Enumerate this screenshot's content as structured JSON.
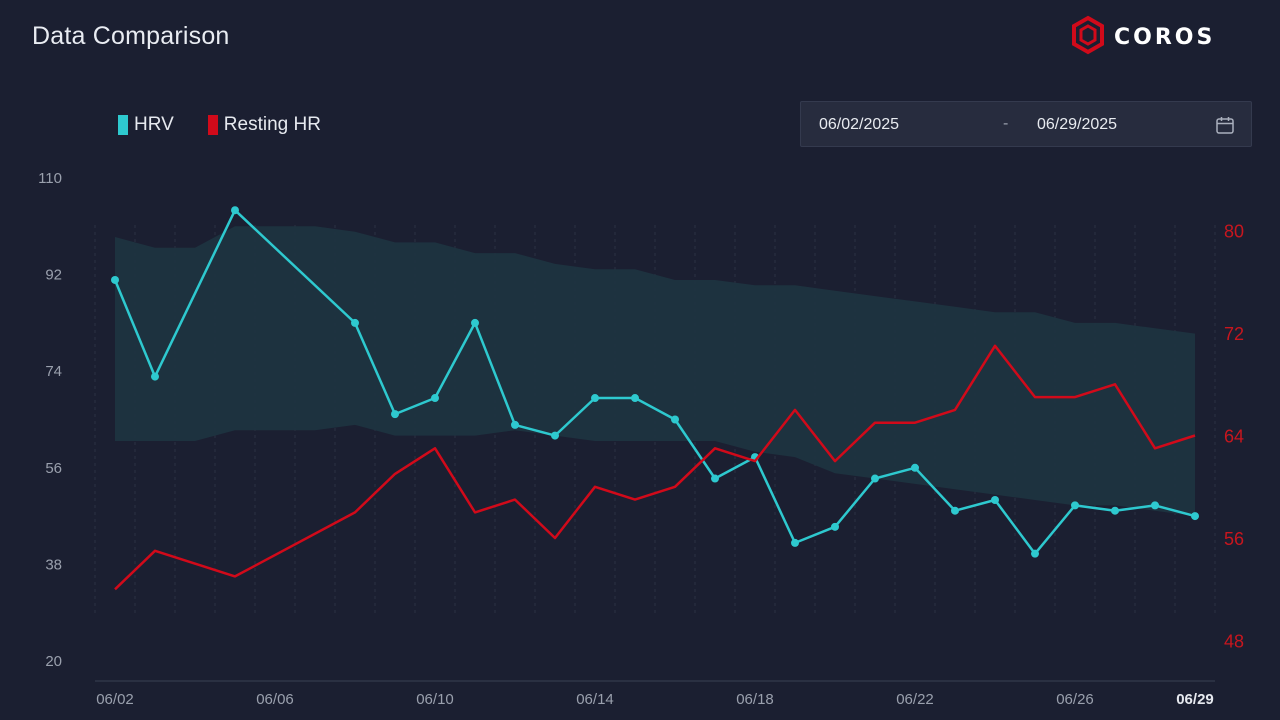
{
  "header": {
    "title": "Data Comparison",
    "brand": "COROS"
  },
  "date_range": {
    "start": "06/02/2025",
    "separator": "-",
    "end": "06/29/2025"
  },
  "legend": [
    {
      "label": "HRV",
      "color": "#2ec9cf"
    },
    {
      "label": "Resting HR",
      "color": "#d10a1a"
    }
  ],
  "colors": {
    "background": "#1b1f31",
    "hrv": "#2ec9cf",
    "resting_hr": "#d10a1a",
    "band": "#1e3440",
    "axis_text": "#9aa0ad",
    "right_axis_text": "#c8161e"
  },
  "icons": {
    "calendar": "calendar-icon",
    "logo": "coros-logo-icon"
  },
  "chart_data": {
    "type": "line",
    "x": [
      "06/02",
      "06/03",
      "06/04",
      "06/05",
      "06/06",
      "06/07",
      "06/08",
      "06/09",
      "06/10",
      "06/11",
      "06/12",
      "06/13",
      "06/14",
      "06/15",
      "06/16",
      "06/17",
      "06/18",
      "06/19",
      "06/20",
      "06/21",
      "06/22",
      "06/23",
      "06/24",
      "06/25",
      "06/26",
      "06/27",
      "06/28",
      "06/29"
    ],
    "x_tick_labels": [
      "06/02",
      "06/06",
      "06/10",
      "06/14",
      "06/18",
      "06/22",
      "06/26",
      "06/29"
    ],
    "y_left": {
      "ticks": [
        20,
        38,
        56,
        74,
        92,
        110
      ],
      "range": [
        20,
        110
      ]
    },
    "y_right": {
      "ticks": [
        48,
        56,
        64,
        72,
        80
      ],
      "range": [
        46.4,
        84.1
      ]
    },
    "grid": "vertical-dashed",
    "legend_position": "top-left",
    "series": [
      {
        "name": "HRV",
        "axis": "left",
        "markers": true,
        "values": [
          91,
          73,
          null,
          104,
          null,
          null,
          83,
          66,
          69,
          83,
          64,
          62,
          69,
          69,
          65,
          54,
          58,
          42,
          45,
          54,
          56,
          48,
          50,
          40,
          49,
          48,
          49,
          47
        ]
      },
      {
        "name": "Resting HR",
        "axis": "right",
        "markers": false,
        "values": [
          52,
          55,
          null,
          53,
          null,
          null,
          58,
          61,
          63,
          58,
          59,
          56,
          60,
          59,
          60,
          63,
          62,
          66,
          62,
          65,
          65,
          66,
          71,
          67,
          67,
          68,
          63,
          64
        ]
      }
    ],
    "baseline_band": {
      "axis": "left",
      "upper": [
        99,
        97,
        97,
        101,
        101,
        101,
        100,
        98,
        98,
        96,
        96,
        94,
        93,
        93,
        91,
        91,
        90,
        90,
        89,
        88,
        87,
        86,
        85,
        85,
        83,
        83,
        82,
        81
      ],
      "lower": [
        61,
        61,
        61,
        63,
        63,
        63,
        64,
        62,
        62,
        62,
        63,
        62,
        61,
        61,
        61,
        61,
        59,
        58,
        55,
        54,
        53,
        52,
        51,
        50,
        49,
        49,
        48,
        47
      ]
    }
  }
}
